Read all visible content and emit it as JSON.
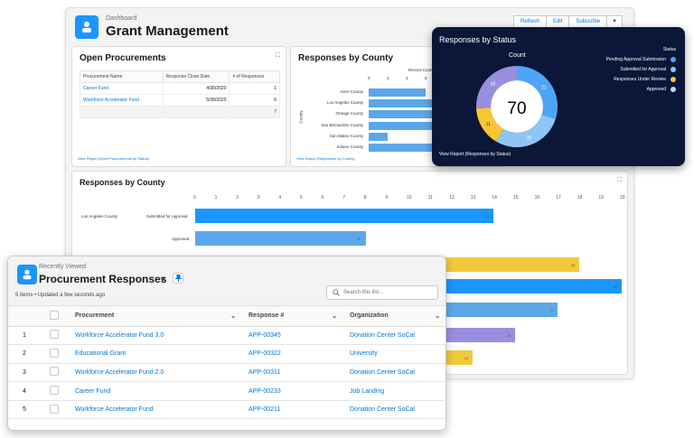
{
  "dashboard": {
    "eyebrow": "Dashboard",
    "title": "Grant Management",
    "buttons": {
      "refresh": "Refresh",
      "edit": "Edit",
      "subscribe": "Subscribe"
    }
  },
  "open_procurements": {
    "title": "Open Procurements",
    "columns": [
      "Procurement Name",
      "Response Close Date",
      "# of Responses"
    ],
    "rows": [
      {
        "name": "Career Fund",
        "date": "4/30/2020",
        "count": "1"
      },
      {
        "name": "Workforce Accelerator Fund",
        "date": "5/28/2020",
        "count": "6"
      },
      {
        "name": "",
        "date": "",
        "count": "7"
      }
    ],
    "link": "View Report (Open Procurements by Status)"
  },
  "small_county": {
    "title": "Responses by County",
    "axis_title": "Record Count",
    "ylabel": "County",
    "ticks": [
      "0",
      "2",
      "4",
      "6"
    ],
    "link": "View Report (Responses by County)"
  },
  "big_county": {
    "title": "Responses by County",
    "county": "Los Angeles County",
    "ticks": [
      "0",
      "1",
      "2",
      "3",
      "4",
      "5",
      "6",
      "7",
      "8",
      "9",
      "10",
      "11",
      "12",
      "13",
      "14",
      "15",
      "16",
      "17",
      "18",
      "19",
      "20"
    ],
    "row_labels": [
      "Submitted for Approval",
      "Approved"
    ]
  },
  "status": {
    "title": "Responses by Status",
    "count_label": "Count",
    "total": "70",
    "legend_title": "Status",
    "legend": [
      {
        "label": "Pending Approval Submission",
        "color": "#4da6f5"
      },
      {
        "label": "Submitted for Approval",
        "color": "#8ec5f7"
      },
      {
        "label": "Responses Under Review",
        "color": "#f7c632"
      },
      {
        "label": "Approved",
        "color": "#b9d8f5"
      }
    ],
    "link": "View Report (Responses by Status)"
  },
  "list": {
    "eyebrow": "Recently Viewed",
    "title": "Procurement Responses",
    "meta": "5 items • Updated a few seconds ago",
    "search_placeholder": "Search this list...",
    "columns": [
      "Procurement",
      "Response #",
      "Organization"
    ],
    "rows": [
      {
        "n": "1",
        "procurement": "Workforce Accelerator Fund 3.0",
        "response": "APP-00345",
        "org": "Donation Center SoCal"
      },
      {
        "n": "2",
        "procurement": "Educational Grant",
        "response": "APP-00322",
        "org": "University"
      },
      {
        "n": "3",
        "procurement": "Workforce Accelerator Fund 2.0",
        "response": "APP-00311",
        "org": "Donation Center SoCal"
      },
      {
        "n": "4",
        "procurement": "Career Fund",
        "response": "APP-00233",
        "org": "Job Landing"
      },
      {
        "n": "5",
        "procurement": "Workforce Accelerator Fund",
        "response": "APP-00211",
        "org": "Donation Center SoCal"
      }
    ]
  },
  "chart_data": [
    {
      "type": "bar",
      "title": "Responses by County",
      "xlabel": "Record Count",
      "ylabel": "County",
      "categories": [
        "Kern County",
        "Los Angeles County",
        "Orange County",
        "San Bernardino County",
        "San Mateo County",
        "Solano County"
      ],
      "values": [
        6,
        7,
        8,
        8,
        2,
        8
      ]
    },
    {
      "type": "pie",
      "title": "Responses by Status",
      "categories": [
        "Pending Approval Submission",
        "Submitted for Approval",
        "Responses Under Review",
        "Approved"
      ],
      "values": [
        21,
        20,
        11,
        18
      ],
      "labels": [
        "21",
        "20",
        "11",
        "18"
      ]
    },
    {
      "type": "bar",
      "title": "Responses by County",
      "xlim": [
        0,
        20
      ],
      "values": [
        14,
        8,
        18,
        20,
        17,
        15,
        13
      ],
      "labels": [
        "14",
        "8",
        "18",
        "20",
        "17",
        "15",
        "13"
      ],
      "colors": [
        "#1b96ff",
        "#5ba7ea",
        "#f2c83d",
        "#1b96ff",
        "#5ba7ea",
        "#9a8ee0",
        "#f2c83d"
      ]
    }
  ]
}
